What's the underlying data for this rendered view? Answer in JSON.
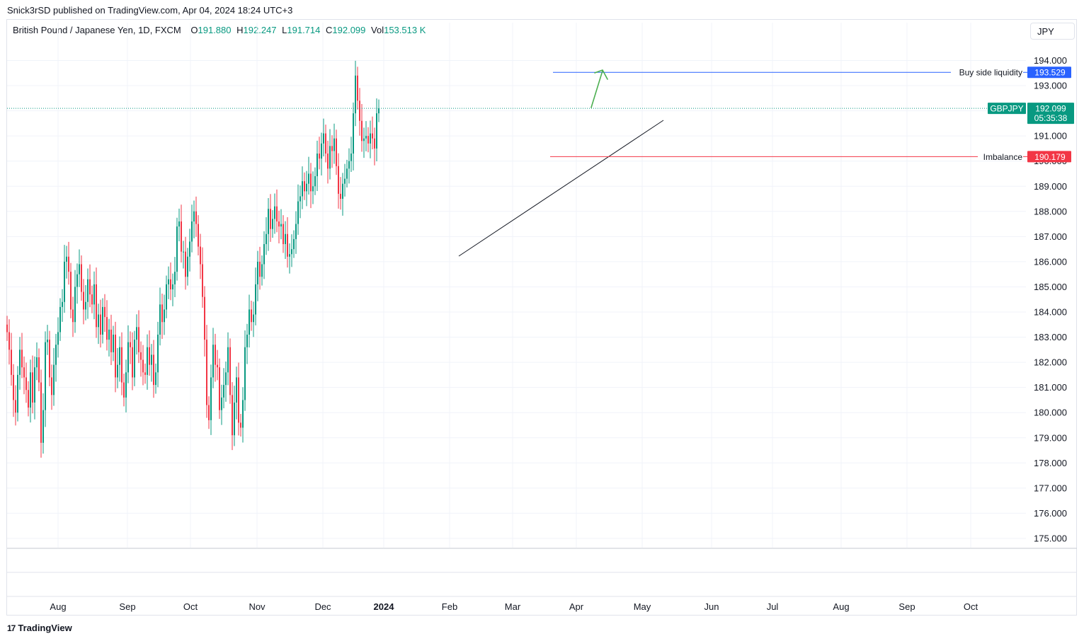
{
  "header": {
    "publisher": "Snick3rSD published on TradingView.com, Apr 04, 2024 18:24 UTC+3",
    "symbol_desc": "British Pound / Japanese Yen, 1D, FXCM",
    "ohlc": [
      {
        "label": "O",
        "value": "191.880"
      },
      {
        "label": "H",
        "value": "192.247"
      },
      {
        "label": "L",
        "value": "191.714"
      },
      {
        "label": "C",
        "value": "192.099"
      },
      {
        "label": "Vol",
        "value": "153.513 K"
      }
    ]
  },
  "currency_button": "JPY",
  "footer": {
    "brand": "TradingView",
    "brand_mark": "17"
  },
  "colors": {
    "up": "#089981",
    "down": "#f23645",
    "blue": "#2962ff",
    "red": "#f23645",
    "green_arrow": "#4caf50",
    "grid": "#f0f3fa"
  },
  "chart_data": {
    "type": "candlestick",
    "symbol": "GBPJPY",
    "timeframe": "1D",
    "ylim": [
      174.5,
      194.8
    ],
    "y_ticks": [
      175,
      176,
      177,
      178,
      179,
      180,
      181,
      182,
      183,
      184,
      185,
      186,
      187,
      188,
      189,
      190,
      191,
      192,
      193,
      194
    ],
    "x_ticks": [
      {
        "label": "Aug",
        "bold": false
      },
      {
        "label": "Sep",
        "bold": false
      },
      {
        "label": "Oct",
        "bold": false
      },
      {
        "label": "Nov",
        "bold": false
      },
      {
        "label": "Dec",
        "bold": false
      },
      {
        "label": "2024",
        "bold": true
      },
      {
        "label": "Feb",
        "bold": false
      },
      {
        "label": "Mar",
        "bold": false
      },
      {
        "label": "Apr",
        "bold": false
      },
      {
        "label": "May",
        "bold": false
      },
      {
        "label": "Jun",
        "bold": false
      },
      {
        "label": "Jul",
        "bold": false
      },
      {
        "label": "Aug",
        "bold": false
      },
      {
        "label": "Sep",
        "bold": false
      },
      {
        "label": "Oct",
        "bold": false
      }
    ],
    "closes": [
      183.2,
      182.5,
      181.5,
      180.5,
      180,
      181.5,
      182.5,
      181.8,
      181.4,
      180.9,
      180.2,
      181.6,
      180.4,
      181.8,
      182.2,
      181.2,
      178.8,
      180.1,
      182.8,
      182.9,
      181.4,
      180.7,
      181.9,
      182.7,
      183.2,
      184.2,
      184.4,
      186,
      186.2,
      185.6,
      184.1,
      183.6,
      185,
      185.5,
      185.9,
      184.8,
      184.1,
      184.4,
      185.3,
      184.7,
      184.3,
      185.1,
      183.4,
      183.9,
      183.1,
      184.2,
      183.8,
      182.9,
      183.3,
      182.4,
      183.1,
      181.4,
      181.9,
      182.6,
      181.2,
      180.6,
      181.6,
      182.8,
      182.6,
      181.4,
      182.9,
      183.4,
      182.4,
      182.1,
      181.6,
      181.5,
      182.6,
      181.9,
      182.3,
      181.1,
      181.6,
      183.1,
      184.3,
      183.6,
      184.1,
      185.1,
      185.3,
      184.9,
      185.1,
      185.6,
      187.4,
      187.6,
      186.4,
      186.4,
      185.4,
      186.2,
      186.8,
      187.6,
      188,
      187.5,
      186.6,
      185.9,
      184.6,
      182.9,
      180.3,
      179.7,
      181.4,
      182.7,
      181.9,
      181.8,
      180.1,
      180.6,
      181.1,
      181.6,
      182.6,
      180.7,
      179.1,
      180.4,
      181.4,
      179.6,
      179.4,
      180.5,
      182.6,
      183.1,
      184.1,
      183.6,
      183.9,
      185.1,
      186,
      185.4,
      185.9,
      186.7,
      187.1,
      188.1,
      187.3,
      187.7,
      188.2,
      187.6,
      187.4,
      187.5,
      186.7,
      187.1,
      186.2,
      186.3,
      186.5,
      186.9,
      187.5,
      188.4,
      188.6,
      189.2,
      188.8,
      189.1,
      189.5,
      188.8,
      189,
      189.4,
      190.3,
      190.1,
      190.7,
      191.1,
      190.3,
      189.7,
      190.6,
      190.4,
      190.9,
      189.8,
      188.7,
      188.5,
      189.1,
      189.3,
      189.7,
      190,
      190.3,
      191.9,
      193.4,
      192.4,
      191.6,
      190.8,
      190.9,
      191,
      190.7,
      191.1,
      190.9,
      190.5,
      191.9,
      192.1
    ],
    "candle_start_x": 10,
    "candle_step": 3.0,
    "annotations": {
      "buy_side_liquidity": {
        "label": "Buy side liquidity",
        "price": 193.529,
        "price_label": "193.529"
      },
      "imbalance": {
        "label": "Imbalance",
        "price": 190.179,
        "price_label": "190.179"
      },
      "last_price": {
        "symbol": "GBPJPY",
        "price": 192.099,
        "price_label": "192.099",
        "countdown": "05:35:38"
      }
    }
  }
}
